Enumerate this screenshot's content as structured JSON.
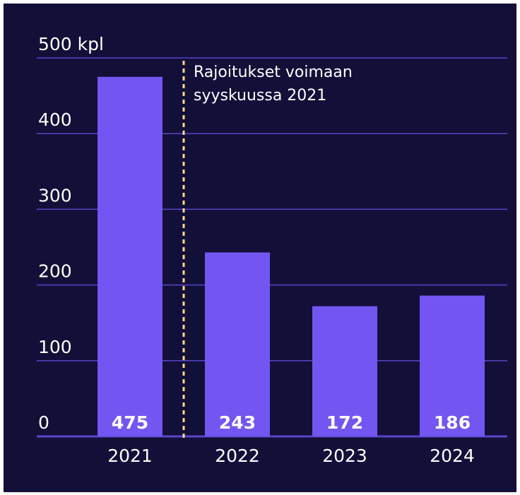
{
  "chart_data": {
    "type": "bar",
    "categories": [
      "2021",
      "2022",
      "2023",
      "2024"
    ],
    "values": [
      475,
      243,
      172,
      186
    ],
    "color": "#7356f1",
    "ylim": [
      0,
      500
    ],
    "yticks": [
      0,
      100,
      200,
      300,
      {
        "value": 500,
        "label": "500 kpl"
      },
      400
    ],
    "grid": true,
    "annotation": {
      "lines": [
        "Rajoitukset voimaan",
        "syyskuussa 2021"
      ],
      "color": "#f6dc8c"
    }
  }
}
